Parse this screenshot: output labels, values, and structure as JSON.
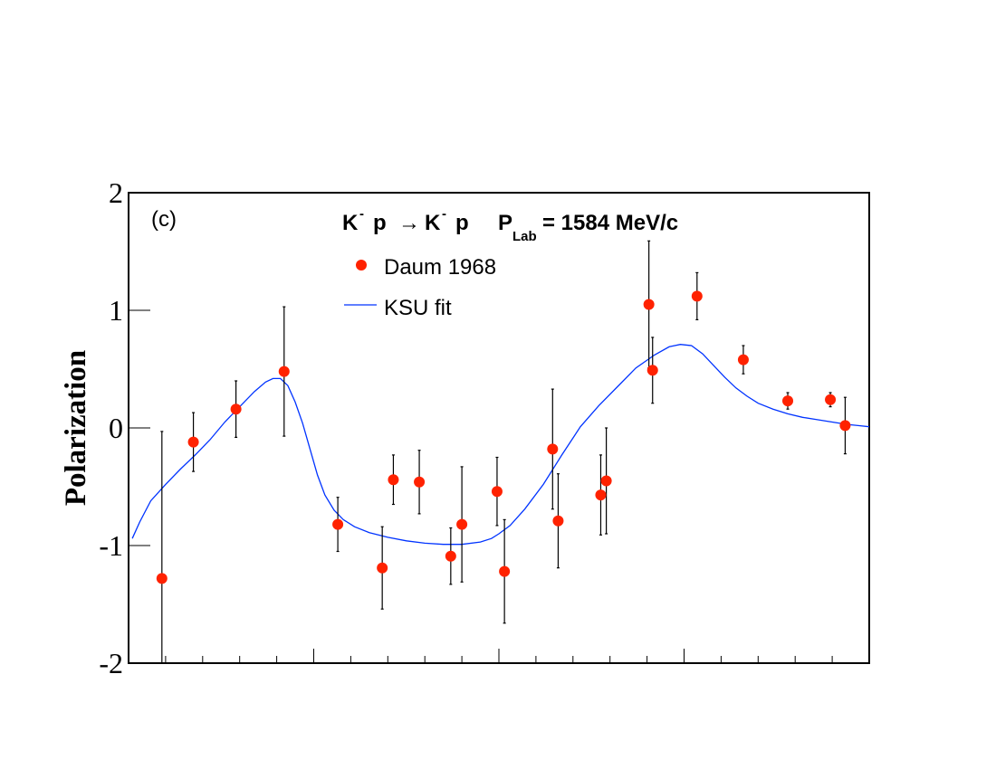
{
  "chart_data": {
    "type": "scatter",
    "panel_label": "(c)",
    "title": {
      "k1": "K",
      "minus1": "-",
      "p1": "p",
      "arrow": "→",
      "k2": "K",
      "minus2": "-",
      "p2": "p",
      "plab_p": "P",
      "plab_sub": "Lab",
      "plab_rest": "= 1584 MeV/c"
    },
    "xlabel": "",
    "ylabel": "Polarization",
    "xlim": [
      -1,
      1
    ],
    "ylim": [
      -2,
      2
    ],
    "y_ticks": [
      -2,
      -1,
      0,
      1,
      2
    ],
    "y_tick_labels": [
      "-2",
      "-1",
      "0",
      "1",
      "2"
    ],
    "x_major_ticks": [
      -1,
      -0.5,
      0,
      0.5,
      1
    ],
    "legend": {
      "placement": "top-center",
      "data_label": "Daum 1968",
      "fit_label": "KSU fit"
    },
    "colors": {
      "data": "#ff2200",
      "fit": "#0033ff",
      "errorbar": "#000000",
      "frame": "#000000"
    },
    "series": [
      {
        "name": "Daum 1968",
        "kind": "points",
        "x": [
          -0.91,
          -0.825,
          -0.71,
          -0.58,
          -0.435,
          -0.315,
          -0.285,
          -0.215,
          -0.13,
          -0.1,
          -0.005,
          0.015,
          0.145,
          0.16,
          0.275,
          0.29,
          0.405,
          0.415,
          0.535,
          0.66,
          0.78,
          0.895,
          0.935
        ],
        "y": [
          -1.28,
          -0.12,
          0.16,
          0.48,
          -0.82,
          -1.19,
          -0.44,
          -0.46,
          -1.09,
          -0.82,
          -0.54,
          -1.22,
          -0.18,
          -0.79,
          -0.57,
          -0.45,
          1.05,
          0.49,
          1.12,
          0.58,
          0.23,
          0.24,
          0.02
        ],
        "err": [
          1.25,
          0.25,
          0.24,
          0.55,
          0.23,
          0.35,
          0.21,
          0.27,
          0.24,
          0.49,
          0.29,
          0.44,
          0.51,
          0.4,
          0.34,
          0.45,
          0.54,
          0.28,
          0.2,
          0.12,
          0.07,
          0.06,
          0.24
        ]
      },
      {
        "name": "KSU fit",
        "kind": "line",
        "x": [
          -0.99,
          -0.97,
          -0.94,
          -0.9,
          -0.86,
          -0.82,
          -0.78,
          -0.74,
          -0.7,
          -0.66,
          -0.63,
          -0.61,
          -0.59,
          -0.57,
          -0.55,
          -0.53,
          -0.51,
          -0.49,
          -0.47,
          -0.445,
          -0.42,
          -0.39,
          -0.35,
          -0.3,
          -0.25,
          -0.2,
          -0.15,
          -0.1,
          -0.05,
          -0.02,
          0.0,
          0.03,
          0.07,
          0.12,
          0.17,
          0.22,
          0.27,
          0.32,
          0.37,
          0.42,
          0.46,
          0.49,
          0.52,
          0.55,
          0.58,
          0.61,
          0.64,
          0.67,
          0.7,
          0.74,
          0.78,
          0.82,
          0.86,
          0.9,
          0.94,
          0.97,
          1.0
        ],
        "y": [
          -0.94,
          -0.8,
          -0.62,
          -0.48,
          -0.35,
          -0.23,
          -0.1,
          0.05,
          0.18,
          0.31,
          0.39,
          0.42,
          0.42,
          0.36,
          0.22,
          0.04,
          -0.18,
          -0.4,
          -0.57,
          -0.7,
          -0.78,
          -0.84,
          -0.89,
          -0.93,
          -0.96,
          -0.98,
          -0.99,
          -0.99,
          -0.97,
          -0.94,
          -0.9,
          -0.83,
          -0.69,
          -0.48,
          -0.23,
          0.01,
          0.19,
          0.35,
          0.51,
          0.62,
          0.69,
          0.71,
          0.7,
          0.63,
          0.53,
          0.43,
          0.34,
          0.27,
          0.21,
          0.16,
          0.12,
          0.09,
          0.07,
          0.05,
          0.03,
          0.02,
          0.01
        ]
      }
    ]
  }
}
